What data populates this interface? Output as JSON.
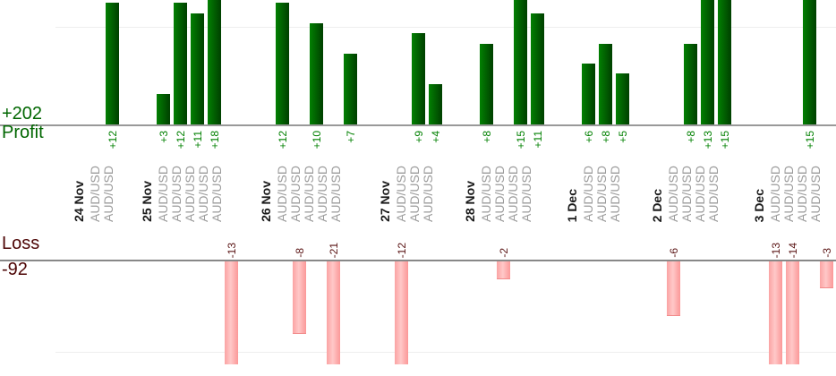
{
  "summary": {
    "profit_total": "+202",
    "profit_label": "Profit",
    "loss_label": "Loss",
    "loss_total": "-92"
  },
  "chart_data": {
    "type": "bar",
    "orientation": "vertical-columns",
    "symbol_label": "AUD/USD",
    "days": [
      {
        "date": "24 Nov",
        "trades": [
          0,
          12
        ]
      },
      {
        "date": "25 Nov",
        "trades": [
          3,
          12,
          11,
          18,
          -13
        ]
      },
      {
        "date": "26 Nov",
        "trades": [
          12,
          -8,
          10,
          -21,
          7
        ]
      },
      {
        "date": "27 Nov",
        "trades": [
          -12,
          9,
          4
        ]
      },
      {
        "date": "28 Nov",
        "trades": [
          8,
          -2,
          15,
          11
        ]
      },
      {
        "date": "1 Dec",
        "trades": [
          6,
          8,
          5
        ]
      },
      {
        "date": "2 Dec",
        "trades": [
          -6,
          8,
          13,
          15
        ]
      },
      {
        "date": "3 Dec",
        "trades": [
          -13,
          -14,
          15,
          -3
        ]
      }
    ],
    "profit_total": 202,
    "loss_total": -92,
    "profit_axis": {
      "visible_max": 12.3,
      "clipped_values_above": 12,
      "gridline_at": 10
    },
    "loss_axis": {
      "visible_max": -11.4,
      "clipped_values_below": -12,
      "gridline_at": -10
    },
    "legend": "none",
    "grid": "faint-horizontal",
    "colors": {
      "profit_bar_light": "#028002",
      "profit_bar_dark": "#004000",
      "profit_value_label": "#008000",
      "profit_heading": "#006600",
      "loss_bar_light": "#ffc8c8",
      "loss_bar_dark": "#fb9898",
      "loss_value_label": "#5a1414",
      "loss_heading": "#4d0505",
      "date_label": "#1a1a1a",
      "symbol_label": "#9b9b9b",
      "profit_axis_line": "#999999",
      "loss_axis_line": "#888888",
      "gridline": "#eeeeee"
    }
  }
}
